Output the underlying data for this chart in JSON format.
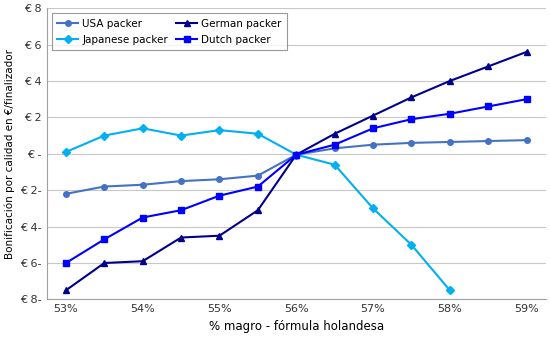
{
  "x": [
    53,
    53.5,
    54,
    54.5,
    55,
    55.5,
    56,
    56.5,
    57,
    57.5,
    58,
    58.5,
    59
  ],
  "usa_packer": [
    -2.2,
    -1.8,
    -1.7,
    -1.5,
    -1.4,
    -1.2,
    -0.05,
    0.3,
    0.5,
    0.6,
    0.65,
    0.7,
    0.75
  ],
  "japanese_packer": [
    0.1,
    1.0,
    1.4,
    1.0,
    1.3,
    1.1,
    -0.05,
    -0.6,
    -3.0,
    -5.0,
    -7.5,
    null,
    null
  ],
  "german_packer": [
    -7.5,
    -6.0,
    -5.9,
    -4.6,
    -4.5,
    -3.1,
    -0.05,
    1.1,
    2.1,
    3.1,
    4.0,
    4.8,
    5.6
  ],
  "dutch_packer": [
    -6.0,
    -4.7,
    -3.5,
    -3.1,
    -2.3,
    -1.8,
    -0.05,
    0.5,
    1.4,
    1.9,
    2.2,
    2.6,
    3.0
  ],
  "usa_color": "#4472c4",
  "japanese_color": "#00b0f0",
  "german_color": "#00008b",
  "dutch_color": "#0000ff",
  "xlabel": "% magro - fórmula holandesa",
  "ylabel": "Bonificación por calidad en €/finalizador",
  "ylim": [
    -8,
    8
  ],
  "yticks": [
    -8,
    -6,
    -4,
    -2,
    0,
    2,
    4,
    6,
    8
  ],
  "xtick_labels": [
    "53%",
    "54%",
    "55%",
    "56%",
    "57%",
    "58%",
    "59%"
  ],
  "xtick_positions": [
    53,
    54,
    55,
    56,
    57,
    58,
    59
  ],
  "legend_usa": "USA packer",
  "legend_japanese": "Japanese packer",
  "legend_german": "German packer",
  "legend_dutch": "Dutch packer",
  "background_color": "#ffffff",
  "grid_color": "#c8c8c8",
  "fig_width": 5.5,
  "fig_height": 3.37,
  "dpi": 100
}
